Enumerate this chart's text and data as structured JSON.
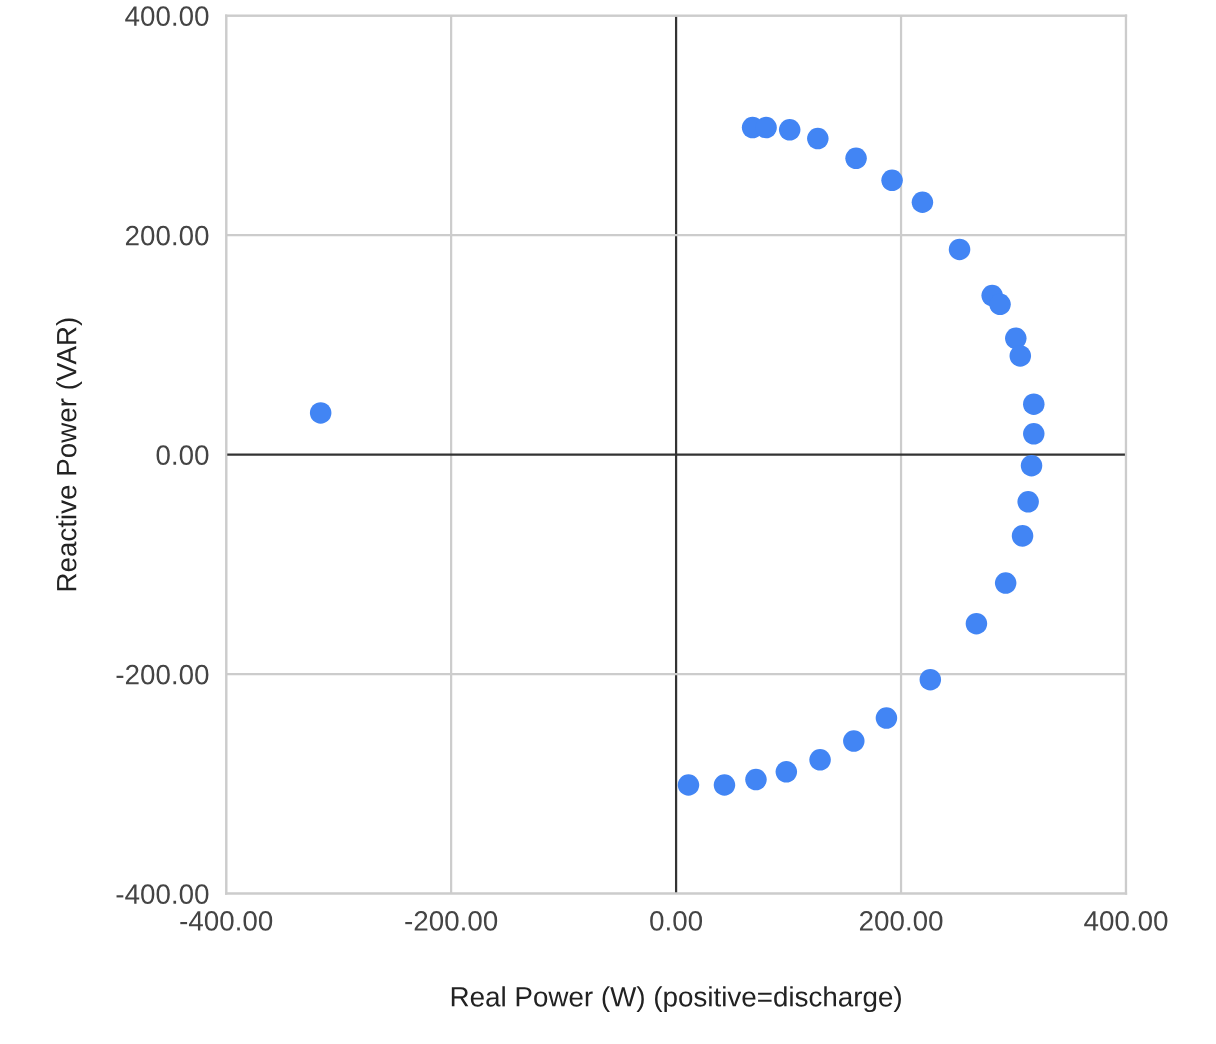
{
  "chart_data": {
    "type": "scatter",
    "xlabel": "Real Power (W) (positive=discharge)",
    "ylabel": "Reactive Power (VAR)",
    "x": [
      -316,
      68,
      80,
      101,
      126,
      160,
      192,
      219,
      252,
      281,
      288,
      302,
      306,
      318,
      318,
      316,
      313,
      308,
      293,
      267,
      226,
      187,
      158,
      128,
      98,
      71,
      43,
      11
    ],
    "values": [
      38,
      298,
      298,
      296,
      288,
      270,
      250,
      230,
      187,
      145,
      137,
      106,
      90,
      46,
      19,
      -10,
      -43,
      -74,
      -117,
      -154,
      -205,
      -240,
      -261,
      -278,
      -289,
      -296,
      -301,
      -301
    ],
    "color": "#4285f4",
    "marker": "circle",
    "xlim": [
      -400,
      400
    ],
    "ylim": [
      -400,
      400
    ],
    "xticks": [
      {
        "value": -400,
        "label": "-400.00"
      },
      {
        "value": -200,
        "label": "-200.00"
      },
      {
        "value": 0,
        "label": "0.00"
      },
      {
        "value": 200,
        "label": "200.00"
      },
      {
        "value": 400,
        "label": "400.00"
      }
    ],
    "yticks": [
      {
        "value": -400,
        "label": "-400.00"
      },
      {
        "value": -200,
        "label": "-200.00"
      },
      {
        "value": 0,
        "label": "0.00"
      },
      {
        "value": 200,
        "label": "200.00"
      },
      {
        "value": 400,
        "label": "400.00"
      }
    ],
    "grid": true
  }
}
